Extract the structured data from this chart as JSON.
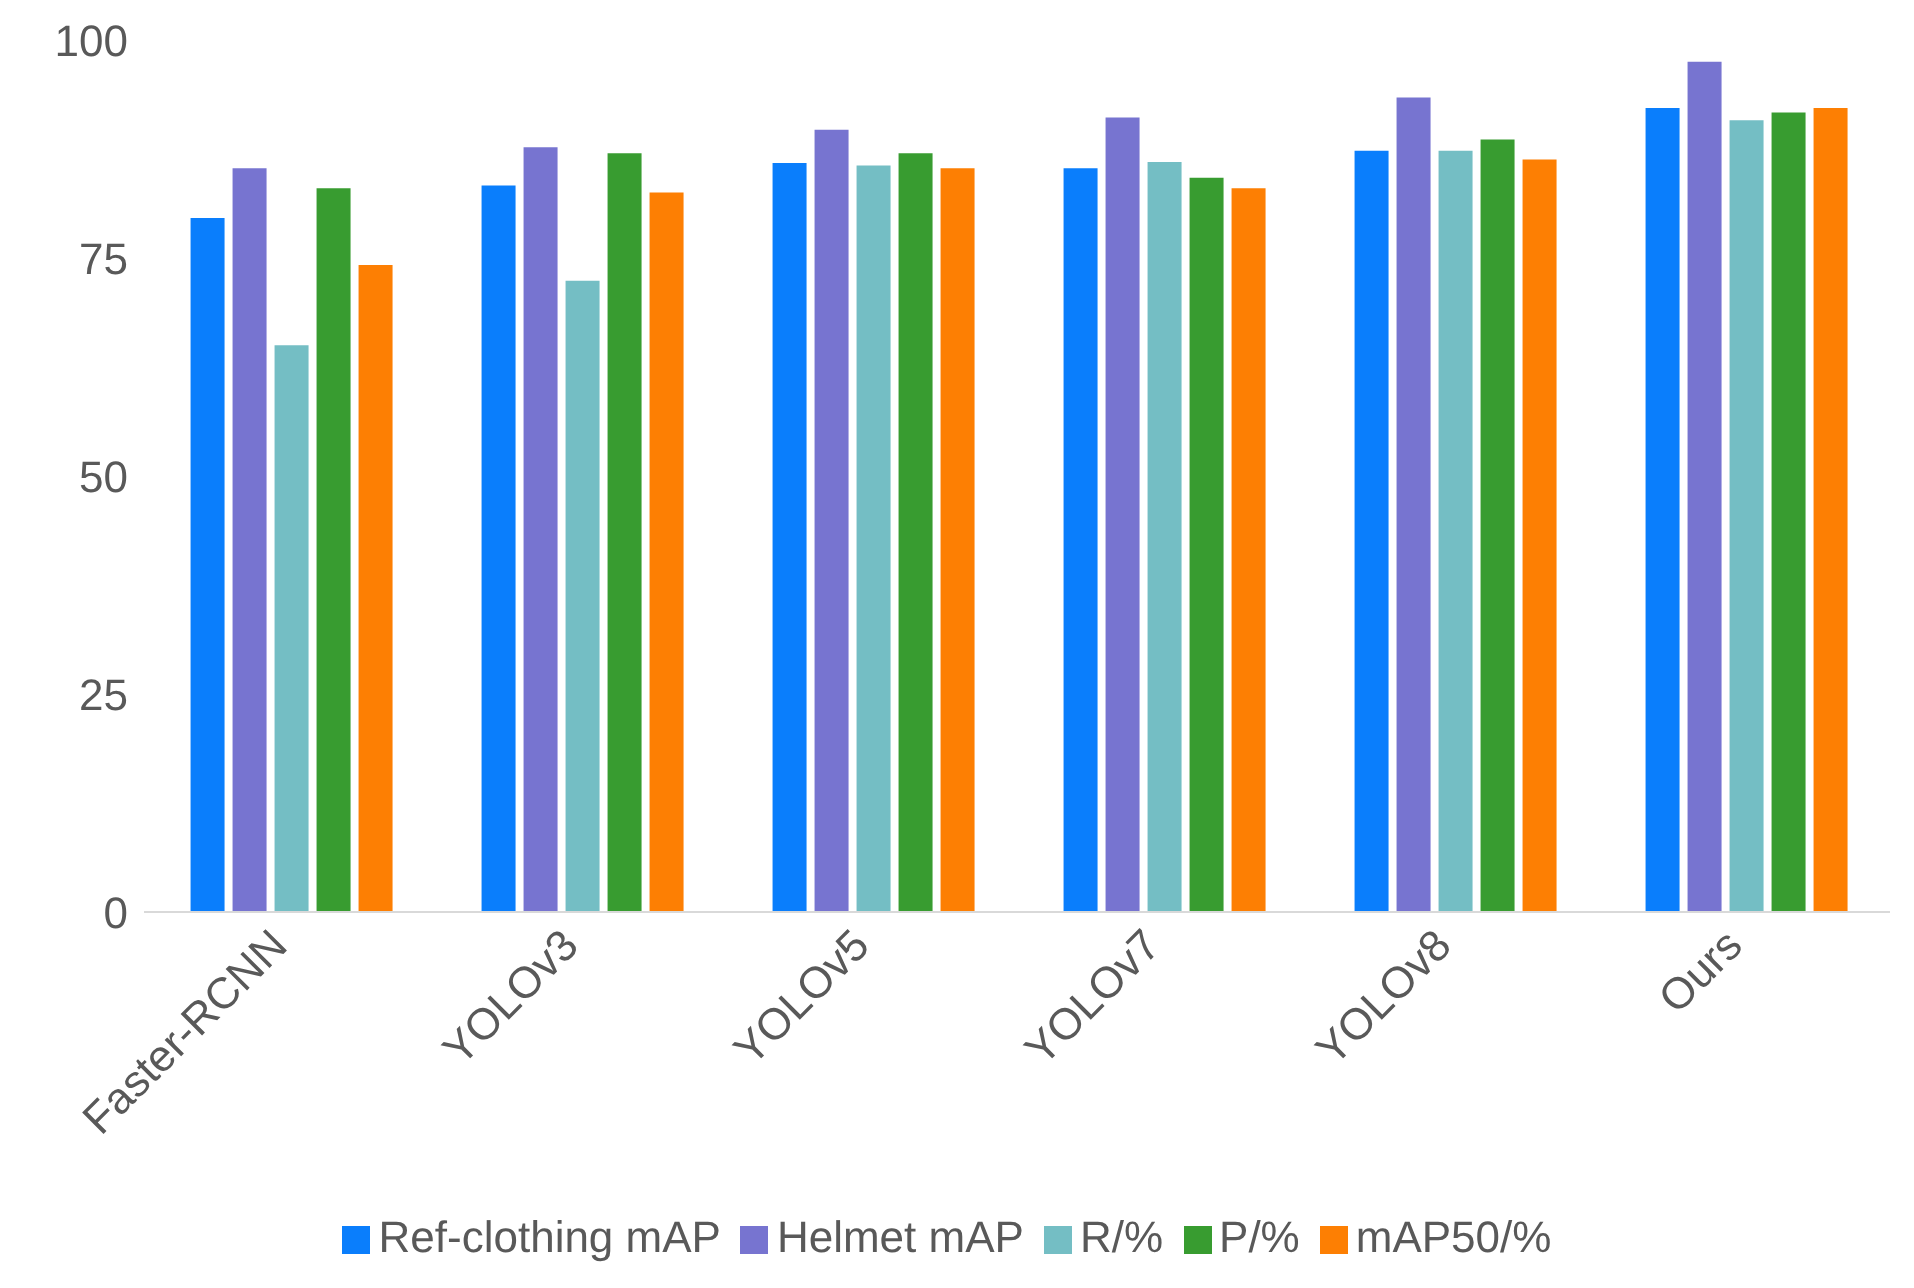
{
  "chart_data": {
    "type": "bar",
    "categories": [
      "Faster-RCNN",
      "YOLOv3",
      "YOLOv5",
      "YOLOv7",
      "YOLOv8",
      "Ours"
    ],
    "series": [
      {
        "name": "Ref-clothing mAP",
        "color": "#0a7efc",
        "values": [
          79.6,
          83.3,
          85.9,
          85.3,
          87.3,
          92.2
        ]
      },
      {
        "name": "Helmet mAP",
        "color": "#7774d0",
        "values": [
          85.3,
          87.7,
          89.7,
          91.1,
          93.4,
          97.5
        ]
      },
      {
        "name": "R/%",
        "color": "#74bec4",
        "values": [
          65.0,
          72.4,
          85.6,
          86.0,
          87.3,
          90.8
        ]
      },
      {
        "name": "P/%",
        "color": "#389c30",
        "values": [
          83.0,
          87.0,
          87.0,
          84.2,
          88.6,
          91.7
        ]
      },
      {
        "name": "mAP50/%",
        "color": "#fd7f03",
        "values": [
          74.2,
          82.5,
          85.3,
          83.0,
          86.3,
          92.2
        ]
      }
    ],
    "ylim": [
      0,
      100
    ],
    "yticks": [
      0,
      25,
      50,
      75,
      100
    ],
    "grid": false,
    "legend": "bottom"
  }
}
